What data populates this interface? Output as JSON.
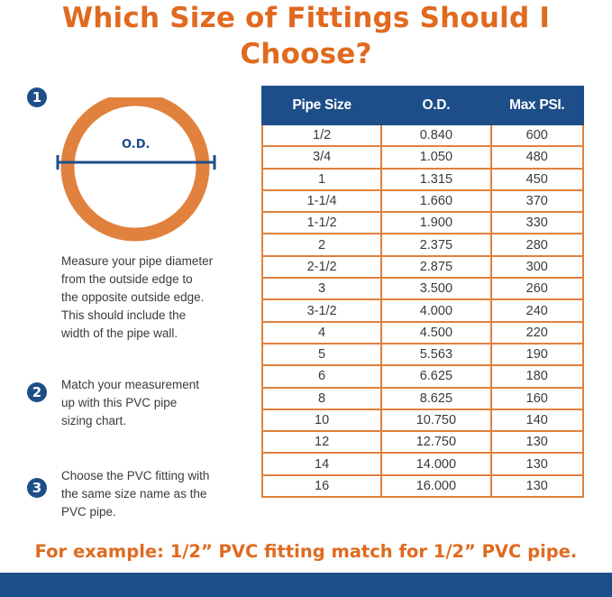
{
  "title": "Which Size of Fittings Should I Choose?",
  "steps": [
    {
      "number": "1",
      "text": "Measure your pipe diameter\nfrom the outside edge to\nthe opposite outside edge.\n This  should include the\n width of the pipe wall."
    },
    {
      "number": "2",
      "text": "Match your measurement\nup with this PVC pipe\nsizing chart."
    },
    {
      "number": "3",
      "text": "Choose the PVC fitting with\nthe same size name as the\nPVC pipe."
    }
  ],
  "diagram": {
    "od_label": "O.D.",
    "ring_color": "#e0813d",
    "line_color": "#1d4e89"
  },
  "table": {
    "headers": [
      "Pipe Size",
      "O.D.",
      "Max PSI."
    ],
    "rows": [
      [
        "1/2",
        "0.840",
        "600"
      ],
      [
        "3/4",
        "1.050",
        "480"
      ],
      [
        "1",
        "1.315",
        "450"
      ],
      [
        "1-1/4",
        "1.660",
        "370"
      ],
      [
        "1-1/2",
        "1.900",
        "330"
      ],
      [
        "2",
        "2.375",
        "280"
      ],
      [
        "2-1/2",
        "2.875",
        "300"
      ],
      [
        "3",
        "3.500",
        "260"
      ],
      [
        "3-1/2",
        "4.000",
        "240"
      ],
      [
        "4",
        "4.500",
        "220"
      ],
      [
        "5",
        "5.563",
        "190"
      ],
      [
        "6",
        "6.625",
        "180"
      ],
      [
        "8",
        "8.625",
        "160"
      ],
      [
        "10",
        "10.750",
        "140"
      ],
      [
        "12",
        "12.750",
        "130"
      ],
      [
        "14",
        "14.000",
        "130"
      ],
      [
        "16",
        "16.000",
        "130"
      ]
    ]
  },
  "example": "For example: 1/2”  PVC fitting match for 1/2”  PVC pipe.",
  "colors": {
    "orange": "#e06a1f",
    "blue": "#1d4e89",
    "border": "#e0813d"
  }
}
